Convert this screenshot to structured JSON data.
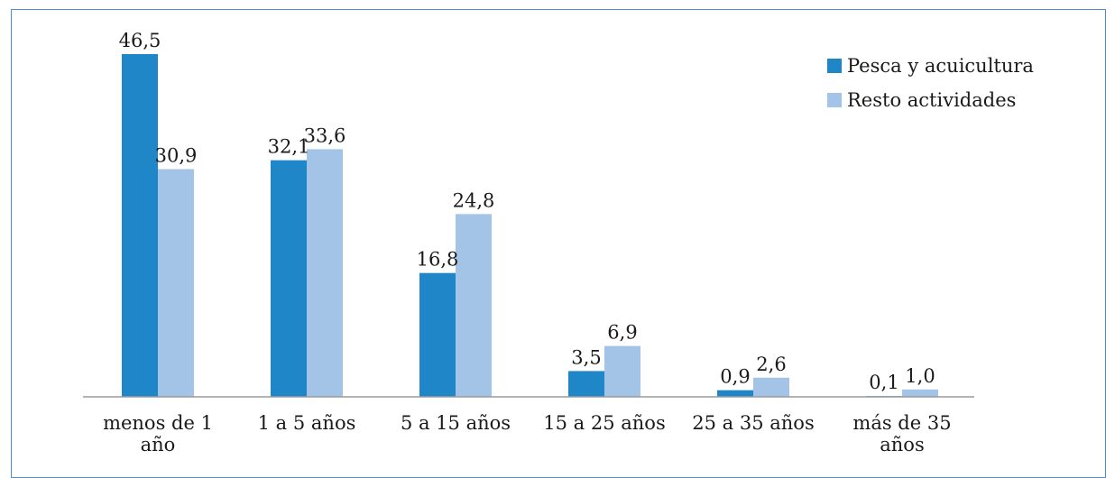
{
  "chart_data": {
    "type": "bar",
    "categories": [
      [
        "menos de 1",
        "año"
      ],
      [
        "1 a 5 años"
      ],
      [
        "5 a 15 años"
      ],
      [
        "15 a 25 años"
      ],
      [
        "25 a 35 años"
      ],
      [
        "más de 35",
        "años"
      ]
    ],
    "series": [
      {
        "name": "Pesca y acuicultura",
        "color": "#1f86c8",
        "values": [
          46.5,
          32.1,
          16.8,
          3.5,
          0.9,
          0.1
        ],
        "labels": [
          "46,5",
          "32,1",
          "16,8",
          "3,5",
          "0,9",
          "0,1"
        ]
      },
      {
        "name": "Resto actividades",
        "color": "#a3c4e6",
        "values": [
          30.9,
          33.6,
          24.8,
          6.9,
          2.6,
          1.0
        ],
        "labels": [
          "30,9",
          "33,6",
          "24,8",
          "6,9",
          "2,6",
          "1,0"
        ]
      }
    ],
    "ylim": [
      0,
      46.5
    ],
    "grid": false,
    "legend": "top-right",
    "title": "",
    "xlabel": "",
    "ylabel": ""
  }
}
